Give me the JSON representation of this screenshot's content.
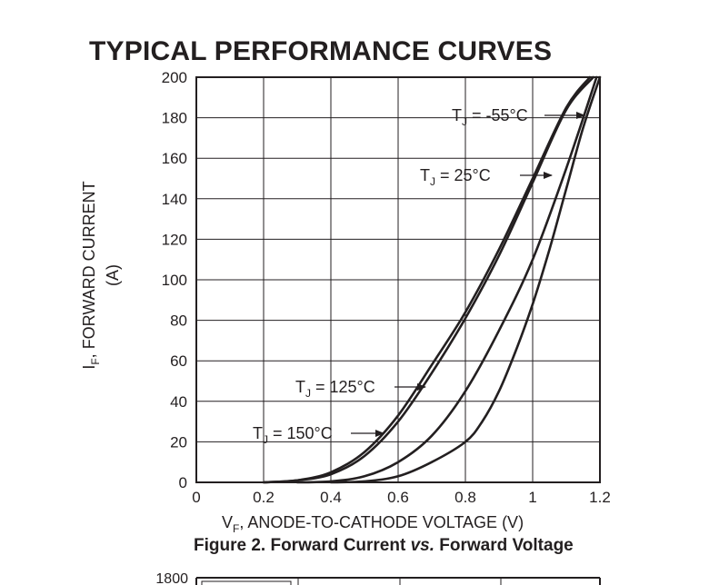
{
  "section": {
    "title": "TYPICAL PERFORMANCE CURVES"
  },
  "figure": {
    "caption_main": "Figure 2. Forward Current ",
    "caption_vs": "vs.",
    "caption_tail": " Forward Voltage"
  },
  "chart_data": {
    "type": "line",
    "title": "Figure 2. Forward Current vs. Forward Voltage",
    "xlabel_symbol": "V",
    "xlabel_sub": "F",
    "xlabel_text": ", ANODE-TO-CATHODE VOLTAGE (V)",
    "ylabel_symbol": "I",
    "ylabel_sub": "F",
    "ylabel_text": ", FORWARD CURRENT",
    "ylabel_unit": "(A)",
    "xlim": [
      0,
      1.2
    ],
    "ylim": [
      0,
      200
    ],
    "xticks": [
      0,
      0.2,
      0.4,
      0.6,
      0.8,
      1,
      1.2
    ],
    "xtick_labels": [
      "0",
      "0.2",
      "0.4",
      "0.6",
      "0.8",
      "1",
      "1.2"
    ],
    "yticks": [
      0,
      20,
      40,
      60,
      80,
      100,
      120,
      140,
      160,
      180,
      200
    ],
    "ytick_labels": [
      "0",
      "20",
      "40",
      "60",
      "80",
      "100",
      "120",
      "140",
      "160",
      "180",
      "200"
    ],
    "grid": true,
    "series": [
      {
        "name": "T_J = 150°C",
        "label_main": "T",
        "label_sub": "J",
        "label_tail": " = 150°C",
        "x": [
          0.2,
          0.3,
          0.4,
          0.5,
          0.6,
          0.7,
          0.8,
          0.9,
          1.0,
          1.1,
          1.17
        ],
        "y": [
          0,
          1,
          5,
          15,
          33,
          58,
          84,
          115,
          150,
          185,
          200
        ]
      },
      {
        "name": "T_J = 125°C",
        "label_main": "T",
        "label_sub": "J",
        "label_tail": " = 125°C",
        "x": [
          0.2,
          0.3,
          0.4,
          0.5,
          0.6,
          0.7,
          0.8,
          0.9,
          1.0,
          1.1,
          1.18
        ],
        "y": [
          0,
          1,
          4,
          13,
          30,
          54,
          81,
          112,
          148,
          184,
          200
        ]
      },
      {
        "name": "T_J = 25°C",
        "label_main": "T",
        "label_sub": "J",
        "label_tail": " = 25°C",
        "x": [
          0.3,
          0.4,
          0.5,
          0.6,
          0.7,
          0.8,
          0.9,
          1.0,
          1.1,
          1.19
        ],
        "y": [
          0,
          0.5,
          3,
          10,
          23,
          45,
          75,
          110,
          155,
          200
        ]
      },
      {
        "name": "T_J = -55°C",
        "label_main": "T",
        "label_sub": "J",
        "label_tail": " = -55°C",
        "x": [
          0.4,
          0.5,
          0.6,
          0.7,
          0.8,
          0.85,
          0.9,
          0.95,
          1.0,
          1.05,
          1.1,
          1.15,
          1.2
        ],
        "y": [
          0,
          0.5,
          3,
          10,
          20,
          30,
          45,
          65,
          88,
          115,
          145,
          175,
          200
        ]
      }
    ]
  },
  "next_chart": {
    "top_tick_label": "1800"
  }
}
